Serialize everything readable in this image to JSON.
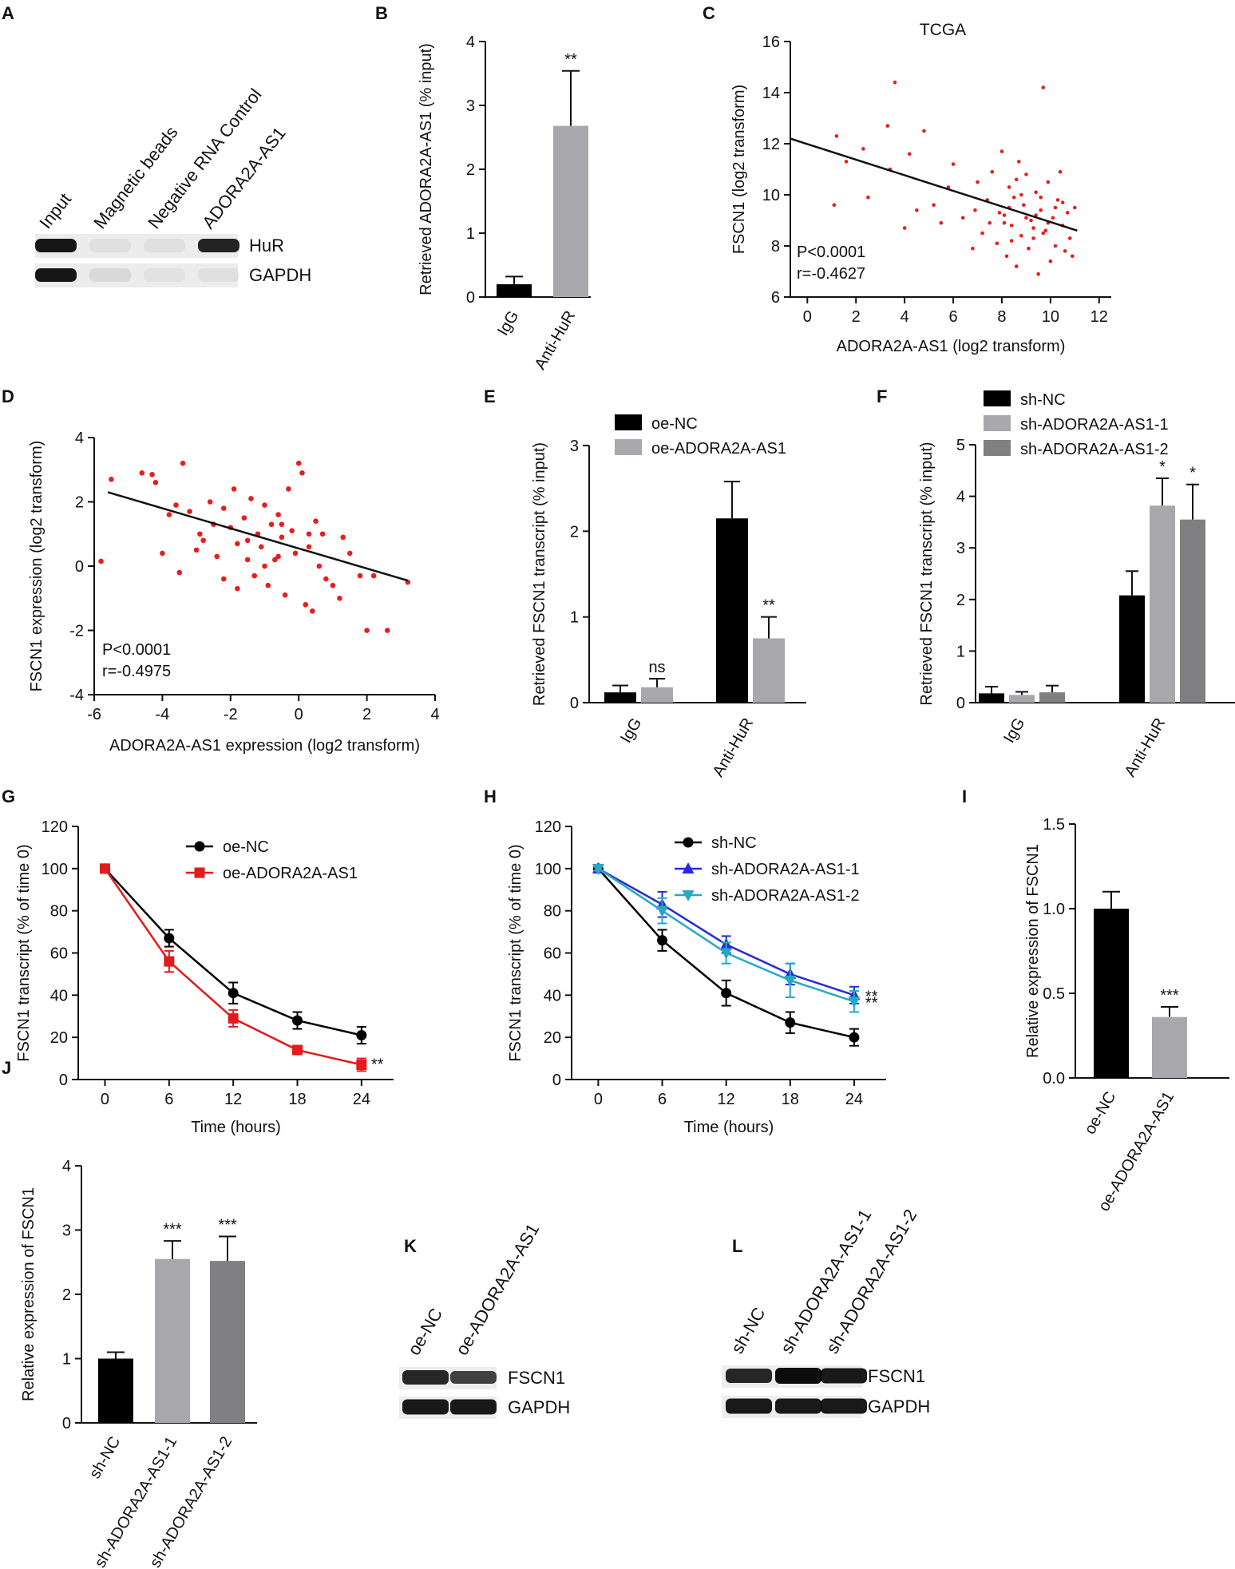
{
  "colors": {
    "black": "#000000",
    "light_gray": "#a8a8ac",
    "dark_gray": "#808082",
    "red": "#e41a1c",
    "scatter_red": "#e81d1d",
    "blue": "#2a2ad8",
    "teal": "#25a9c2"
  },
  "chart_data": [
    {
      "panel": "A",
      "type": "western-blot",
      "lanes": [
        "Input",
        "Magnetic beads",
        "Negative RNA Control",
        "ADORA2A-AS1"
      ],
      "bands": [
        "HuR",
        "GAPDH"
      ],
      "intensity": [
        [
          0.9,
          0.05,
          0.05,
          0.85
        ],
        [
          0.9,
          0.08,
          0.04,
          0.05
        ]
      ]
    },
    {
      "panel": "B",
      "type": "bar",
      "categories": [
        "IgG",
        "Anti-HuR"
      ],
      "values": [
        0.2,
        2.68
      ],
      "errors": [
        0.12,
        0.86
      ],
      "bar_colors": [
        "#000000",
        "#a8a8ac"
      ],
      "annotations": [
        "",
        "**"
      ],
      "ylabel": "Retrieved ADORA2A-AS1 (% input)",
      "ylim": [
        0,
        4
      ],
      "yticks": [
        "0",
        "1",
        "2",
        "3",
        "4"
      ]
    },
    {
      "panel": "C",
      "type": "scatter",
      "title": "TCGA",
      "xlabel": "ADORA2A-AS1 (log2 transform)",
      "ylabel": "FSCN1 (log2 transform)",
      "xlim": [
        -0.7,
        12.5
      ],
      "ylim": [
        6,
        16
      ],
      "xticks": [
        "0",
        "2",
        "4",
        "6",
        "8",
        "10",
        "12"
      ],
      "yticks": [
        "6",
        "8",
        "10",
        "12",
        "14",
        "16"
      ],
      "fit_line": [
        [
          -0.7,
          12.2
        ],
        [
          11.1,
          8.6
        ]
      ],
      "stat_p": "P<0.0001",
      "stat_r": "r=-0.4627",
      "points": [
        [
          1.2,
          12.3
        ],
        [
          1.6,
          11.3
        ],
        [
          1.1,
          9.6
        ],
        [
          2.3,
          11.8
        ],
        [
          2.5,
          9.9
        ],
        [
          3.4,
          11.0
        ],
        [
          3.6,
          14.4
        ],
        [
          3.3,
          12.7
        ],
        [
          4.8,
          12.5
        ],
        [
          4.2,
          11.6
        ],
        [
          4.5,
          9.4
        ],
        [
          4.0,
          8.7
        ],
        [
          5.2,
          9.6
        ],
        [
          5.5,
          8.9
        ],
        [
          5.8,
          10.3
        ],
        [
          6.0,
          11.2
        ],
        [
          6.4,
          9.1
        ],
        [
          6.8,
          7.9
        ],
        [
          7.0,
          10.5
        ],
        [
          7.2,
          8.5
        ],
        [
          7.4,
          9.8
        ],
        [
          7.6,
          10.9
        ],
        [
          7.8,
          8.1
        ],
        [
          8.0,
          11.7
        ],
        [
          8.1,
          9.2
        ],
        [
          8.2,
          7.6
        ],
        [
          8.3,
          10.3
        ],
        [
          8.4,
          8.8
        ],
        [
          8.5,
          9.9
        ],
        [
          8.6,
          7.2
        ],
        [
          8.7,
          11.3
        ],
        [
          8.8,
          8.4
        ],
        [
          8.9,
          9.6
        ],
        [
          9.0,
          10.8
        ],
        [
          9.1,
          7.9
        ],
        [
          9.2,
          9.0
        ],
        [
          9.3,
          8.3
        ],
        [
          9.4,
          10.1
        ],
        [
          9.5,
          6.9
        ],
        [
          9.6,
          9.4
        ],
        [
          9.7,
          14.2
        ],
        [
          9.8,
          8.6
        ],
        [
          9.9,
          10.5
        ],
        [
          10.0,
          7.4
        ],
        [
          10.1,
          9.1
        ],
        [
          10.2,
          8.0
        ],
        [
          10.3,
          9.8
        ],
        [
          10.4,
          10.9
        ],
        [
          10.5,
          8.8
        ],
        [
          10.6,
          7.8
        ],
        [
          10.7,
          9.3
        ],
        [
          10.8,
          8.3
        ],
        [
          10.9,
          7.6
        ],
        [
          11.0,
          9.5
        ],
        [
          7.9,
          9.3
        ],
        [
          8.3,
          9.5
        ],
        [
          8.6,
          10.6
        ],
        [
          9.0,
          9.1
        ],
        [
          9.3,
          8.7
        ],
        [
          9.6,
          9.9
        ],
        [
          9.9,
          8.9
        ],
        [
          10.2,
          9.5
        ],
        [
          8.1,
          8.9
        ],
        [
          8.8,
          10.0
        ],
        [
          9.4,
          9.2
        ],
        [
          7.5,
          8.9
        ],
        [
          8.4,
          8.2
        ],
        [
          9.7,
          8.5
        ],
        [
          10.5,
          9.7
        ],
        [
          6.9,
          9.4
        ]
      ]
    },
    {
      "panel": "D",
      "type": "scatter",
      "xlabel": "ADORA2A-AS1 expression (log2 transform)",
      "ylabel": "FSCN1 expression (log2 transform)",
      "xlim": [
        -6,
        4
      ],
      "ylim": [
        -4,
        4
      ],
      "xticks": [
        "-6",
        "-4",
        "-2",
        "0",
        "2",
        "4"
      ],
      "yticks": [
        "-4",
        "-2",
        "0",
        "2",
        "4"
      ],
      "fit_line": [
        [
          -5.6,
          2.3
        ],
        [
          3.2,
          -0.45
        ]
      ],
      "stat_p": "P<0.0001",
      "stat_r": "r=-0.4975",
      "points": [
        [
          -5.5,
          2.7
        ],
        [
          -5.8,
          0.15
        ],
        [
          -4.6,
          2.9
        ],
        [
          -4.3,
          2.85
        ],
        [
          -4.2,
          2.6
        ],
        [
          -4.0,
          0.4
        ],
        [
          -3.8,
          1.6
        ],
        [
          -3.5,
          -0.2
        ],
        [
          -3.4,
          3.2
        ],
        [
          -3.2,
          1.7
        ],
        [
          -3.0,
          0.5
        ],
        [
          -2.8,
          0.8
        ],
        [
          -2.6,
          2.0
        ],
        [
          -2.4,
          0.3
        ],
        [
          -2.2,
          -0.4
        ],
        [
          -2.0,
          1.2
        ],
        [
          -1.9,
          2.4
        ],
        [
          -1.8,
          0.7
        ],
        [
          -1.6,
          1.5
        ],
        [
          -1.5,
          0.2
        ],
        [
          -1.4,
          2.1
        ],
        [
          -1.3,
          -0.3
        ],
        [
          -1.2,
          1.0
        ],
        [
          -1.1,
          0.6
        ],
        [
          -1.0,
          1.9
        ],
        [
          -0.9,
          -0.6
        ],
        [
          -0.8,
          1.3
        ],
        [
          -0.7,
          0.2
        ],
        [
          -0.6,
          1.6
        ],
        [
          -0.5,
          0.9
        ],
        [
          -0.4,
          -0.9
        ],
        [
          -0.3,
          2.4
        ],
        [
          -0.2,
          1.1
        ],
        [
          -0.1,
          0.4
        ],
        [
          0.0,
          3.2
        ],
        [
          0.1,
          2.9
        ],
        [
          0.2,
          -1.2
        ],
        [
          0.3,
          0.6
        ],
        [
          0.4,
          -1.4
        ],
        [
          0.5,
          1.4
        ],
        [
          0.6,
          0.0
        ],
        [
          0.8,
          -0.4
        ],
        [
          1.0,
          -0.6
        ],
        [
          1.2,
          -1.0
        ],
        [
          1.5,
          0.4
        ],
        [
          1.8,
          -0.3
        ],
        [
          2.0,
          -2.0
        ],
        [
          2.2,
          -0.3
        ],
        [
          2.6,
          -2.0
        ],
        [
          3.2,
          -0.5
        ],
        [
          -2.5,
          1.3
        ],
        [
          -1.5,
          0.8
        ],
        [
          -0.6,
          0.3
        ],
        [
          0.7,
          1.0
        ],
        [
          1.3,
          0.9
        ],
        [
          -2.9,
          1.0
        ],
        [
          -1.8,
          -0.7
        ],
        [
          -3.6,
          1.9
        ],
        [
          -2.2,
          1.8
        ],
        [
          -0.5,
          1.3
        ],
        [
          0.3,
          1.0
        ],
        [
          -1.0,
          0.0
        ]
      ]
    },
    {
      "panel": "E",
      "type": "bar",
      "categories": [
        "IgG",
        "Anti-HuR"
      ],
      "series": [
        {
          "name": "oe-NC",
          "values": [
            0.12,
            2.15
          ],
          "errors": [
            0.08,
            0.43
          ],
          "color": "#000000",
          "annotations": [
            "",
            ""
          ]
        },
        {
          "name": "oe-ADORA2A-AS1",
          "values": [
            0.18,
            0.75
          ],
          "errors": [
            0.1,
            0.25
          ],
          "color": "#a8a8ac",
          "annotations": [
            "ns",
            "**"
          ]
        }
      ],
      "ylabel": "Retrieved FSCN1 transcript (% input)",
      "ylim": [
        0,
        3
      ],
      "yticks": [
        "0",
        "1",
        "2",
        "3"
      ]
    },
    {
      "panel": "F",
      "type": "bar",
      "categories": [
        "IgG",
        "Anti-HuR"
      ],
      "series": [
        {
          "name": "sh-NC",
          "values": [
            0.18,
            2.08
          ],
          "errors": [
            0.13,
            0.47
          ],
          "color": "#000000",
          "annotations": [
            "",
            ""
          ]
        },
        {
          "name": "sh-ADORA2A-AS1-1",
          "values": [
            0.15,
            3.82
          ],
          "errors": [
            0.06,
            0.53
          ],
          "color": "#a8a8ac",
          "annotations": [
            "",
            "*"
          ]
        },
        {
          "name": "sh-ADORA2A-AS1-2",
          "values": [
            0.2,
            3.55
          ],
          "errors": [
            0.13,
            0.68
          ],
          "color": "#808082",
          "annotations": [
            "",
            "*"
          ]
        }
      ],
      "ylabel": "Retrieved FSCN1 transcript (% input)",
      "ylim": [
        0,
        5
      ],
      "yticks": [
        "0",
        "1",
        "2",
        "3",
        "4",
        "5"
      ]
    },
    {
      "panel": "G",
      "type": "line",
      "x": [
        0,
        6,
        12,
        18,
        24
      ],
      "series": [
        {
          "name": "oe-NC",
          "values": [
            100,
            67,
            41,
            28,
            21
          ],
          "errors": [
            1,
            4,
            5,
            4,
            4
          ],
          "color": "#000000",
          "marker": "circle"
        },
        {
          "name": "oe-ADORA2A-AS1",
          "values": [
            100,
            56,
            29,
            14,
            7
          ],
          "errors": [
            1,
            5,
            4,
            2,
            3
          ],
          "color": "#e41a1c",
          "marker": "square"
        }
      ],
      "end_annotation": "**",
      "xlabel": "Time (hours)",
      "ylabel": "FSCN1 transcript (% of time 0)",
      "xticks": [
        "0",
        "6",
        "12",
        "18",
        "24"
      ],
      "yticks": [
        "0",
        "20",
        "40",
        "60",
        "80",
        "100",
        "120"
      ],
      "xlim": [
        -2.5,
        27
      ],
      "ylim": [
        0,
        120
      ]
    },
    {
      "panel": "H",
      "type": "line",
      "x": [
        0,
        6,
        12,
        18,
        24
      ],
      "series": [
        {
          "name": "sh-NC",
          "values": [
            100,
            66,
            41,
            27,
            20
          ],
          "errors": [
            1,
            5,
            6,
            5,
            4
          ],
          "color": "#000000",
          "marker": "circle"
        },
        {
          "name": "sh-ADORA2A-AS1-1",
          "values": [
            100,
            83,
            64,
            50,
            40
          ],
          "errors": [
            1,
            6,
            4,
            5,
            4
          ],
          "color": "#2a2ad8",
          "marker": "triangle-up"
        },
        {
          "name": "sh-ADORA2A-AS1-2",
          "values": [
            100,
            80,
            60,
            47,
            37
          ],
          "errors": [
            1,
            6,
            5,
            8,
            5
          ],
          "color": "#25a9c2",
          "marker": "triangle-down"
        }
      ],
      "end_annotations": [
        "**",
        "**"
      ],
      "xlabel": "Time (hours)",
      "ylabel": "FSCN1 transcript (% of time 0)",
      "xticks": [
        "0",
        "6",
        "12",
        "18",
        "24"
      ],
      "yticks": [
        "0",
        "20",
        "40",
        "60",
        "80",
        "100",
        "120"
      ],
      "xlim": [
        -2.5,
        27
      ],
      "ylim": [
        0,
        120
      ]
    },
    {
      "panel": "I",
      "type": "bar",
      "categories": [
        "oe-NC",
        "oe-ADORA2A-AS1"
      ],
      "values": [
        1.0,
        0.36
      ],
      "errors": [
        0.1,
        0.06
      ],
      "bar_colors": [
        "#000000",
        "#a8a8ac"
      ],
      "annotations": [
        "",
        "***"
      ],
      "ylabel": "Relative expression of FSCN1",
      "ylim": [
        0,
        1.5
      ],
      "yticks": [
        "0.0",
        "0.5",
        "1.0",
        "1.5"
      ]
    },
    {
      "panel": "J",
      "type": "bar",
      "categories": [
        "sh-NC",
        "sh-ADORA2A-AS1-1",
        "sh-ADORA2A-AS1-2"
      ],
      "values": [
        1.0,
        2.55,
        2.52
      ],
      "errors": [
        0.1,
        0.28,
        0.38
      ],
      "bar_colors": [
        "#000000",
        "#a8a8ac",
        "#808082"
      ],
      "annotations": [
        "",
        "***",
        "***"
      ],
      "ylabel": "Relative expression of FSCN1",
      "ylim": [
        0,
        4
      ],
      "yticks": [
        "0",
        "1",
        "2",
        "3",
        "4"
      ]
    },
    {
      "panel": "K",
      "type": "western-blot",
      "lanes": [
        "oe-NC",
        "oe-ADORA2A-AS1"
      ],
      "bands": [
        "FSCN1",
        "GAPDH"
      ],
      "intensity": [
        [
          0.8,
          0.6
        ],
        [
          0.9,
          0.9
        ]
      ]
    },
    {
      "panel": "L",
      "type": "western-blot",
      "lanes": [
        "sh-NC",
        "sh-ADORA2A-AS1-1",
        "sh-ADORA2A-AS1-2"
      ],
      "bands": [
        "FSCN1",
        "GAPDH"
      ],
      "intensity": [
        [
          0.8,
          1.0,
          0.9
        ],
        [
          0.9,
          0.9,
          0.9
        ]
      ]
    }
  ]
}
